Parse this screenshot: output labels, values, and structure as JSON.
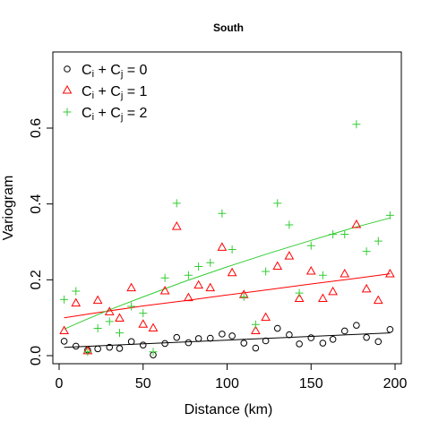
{
  "chart_data": {
    "type": "scatter",
    "title": "South",
    "xlabel": "Distance (km)",
    "ylabel": "Variogram",
    "xlim": [
      0,
      200
    ],
    "ylim": [
      -0.02,
      0.8
    ],
    "xticks": [
      0,
      50,
      100,
      150,
      200
    ],
    "yticks": [
      0.0,
      0.2,
      0.4,
      0.6
    ],
    "ytick_labels": [
      "0.0",
      "0.2",
      "0.4",
      "0.6"
    ],
    "legend_position": "top-left",
    "legend": [
      {
        "label_main": "C",
        "sub1": "i",
        "mid": " + C",
        "sub2": "j",
        "tail": " = 0"
      },
      {
        "label_main": "C",
        "sub1": "i",
        "mid": " + C",
        "sub2": "j",
        "tail": " = 1"
      },
      {
        "label_main": "C",
        "sub1": "i",
        "mid": " + C",
        "sub2": "j",
        "tail": " = 2"
      }
    ],
    "series": [
      {
        "marker": "circle",
        "color": "#000000",
        "points": [
          [
            3,
            0.038
          ],
          [
            10,
            0.025
          ],
          [
            17,
            0.015
          ],
          [
            23,
            0.018
          ],
          [
            30,
            0.022
          ],
          [
            36,
            0.019
          ],
          [
            43,
            0.037
          ],
          [
            50,
            0.028
          ],
          [
            56,
            0.002
          ],
          [
            63,
            0.032
          ],
          [
            70,
            0.048
          ],
          [
            77,
            0.034
          ],
          [
            83,
            0.045
          ],
          [
            90,
            0.046
          ],
          [
            97,
            0.057
          ],
          [
            103,
            0.052
          ],
          [
            110,
            0.033
          ],
          [
            117,
            0.02
          ],
          [
            123,
            0.039
          ],
          [
            130,
            0.072
          ],
          [
            137,
            0.055
          ],
          [
            143,
            0.031
          ],
          [
            150,
            0.047
          ],
          [
            157,
            0.033
          ],
          [
            163,
            0.043
          ],
          [
            170,
            0.065
          ],
          [
            177,
            0.08
          ],
          [
            183,
            0.048
          ],
          [
            190,
            0.037
          ],
          [
            197,
            0.069
          ]
        ],
        "fit": [
          [
            3,
            0.022
          ],
          [
            197,
            0.06
          ]
        ]
      },
      {
        "marker": "triangle",
        "color": "#ff0000",
        "points": [
          [
            3,
            0.065
          ],
          [
            10,
            0.138
          ],
          [
            17,
            0.012
          ],
          [
            23,
            0.145
          ],
          [
            30,
            0.115
          ],
          [
            36,
            0.098
          ],
          [
            43,
            0.178
          ],
          [
            50,
            0.082
          ],
          [
            56,
            0.072
          ],
          [
            63,
            0.17
          ],
          [
            70,
            0.34
          ],
          [
            77,
            0.152
          ],
          [
            83,
            0.185
          ],
          [
            90,
            0.178
          ],
          [
            97,
            0.285
          ],
          [
            103,
            0.218
          ],
          [
            110,
            0.16
          ],
          [
            117,
            0.065
          ],
          [
            123,
            0.1
          ],
          [
            130,
            0.235
          ],
          [
            137,
            0.262
          ],
          [
            143,
            0.15
          ],
          [
            150,
            0.222
          ],
          [
            157,
            0.15
          ],
          [
            163,
            0.168
          ],
          [
            170,
            0.215
          ],
          [
            177,
            0.345
          ],
          [
            183,
            0.175
          ],
          [
            190,
            0.145
          ],
          [
            197,
            0.215
          ]
        ],
        "fit": [
          [
            3,
            0.1
          ],
          [
            15,
            0.108
          ],
          [
            30,
            0.118
          ],
          [
            50,
            0.131
          ],
          [
            75,
            0.145
          ],
          [
            100,
            0.16
          ],
          [
            125,
            0.174
          ],
          [
            150,
            0.189
          ],
          [
            175,
            0.203
          ],
          [
            197,
            0.216
          ]
        ]
      },
      {
        "marker": "plus",
        "color": "#33cc33",
        "points": [
          [
            3,
            0.148
          ],
          [
            10,
            0.17
          ],
          [
            17,
            0.01
          ],
          [
            23,
            0.072
          ],
          [
            30,
            0.09
          ],
          [
            36,
            0.06
          ],
          [
            43,
            0.13
          ],
          [
            50,
            0.112
          ],
          [
            56,
            0.01
          ],
          [
            63,
            0.205
          ],
          [
            70,
            0.402
          ],
          [
            77,
            0.212
          ],
          [
            83,
            0.235
          ],
          [
            90,
            0.245
          ],
          [
            97,
            0.375
          ],
          [
            103,
            0.28
          ],
          [
            110,
            0.155
          ],
          [
            117,
            0.082
          ],
          [
            123,
            0.222
          ],
          [
            130,
            0.402
          ],
          [
            137,
            0.345
          ],
          [
            143,
            0.165
          ],
          [
            150,
            0.29
          ],
          [
            157,
            0.212
          ],
          [
            163,
            0.32
          ],
          [
            170,
            0.32
          ],
          [
            177,
            0.61
          ],
          [
            183,
            0.275
          ],
          [
            190,
            0.302
          ],
          [
            197,
            0.37
          ]
        ],
        "fit": [
          [
            3,
            0.07
          ],
          [
            15,
            0.093
          ],
          [
            30,
            0.121
          ],
          [
            50,
            0.155
          ],
          [
            75,
            0.196
          ],
          [
            100,
            0.234
          ],
          [
            125,
            0.27
          ],
          [
            150,
            0.304
          ],
          [
            175,
            0.337
          ],
          [
            197,
            0.363
          ]
        ]
      }
    ]
  }
}
